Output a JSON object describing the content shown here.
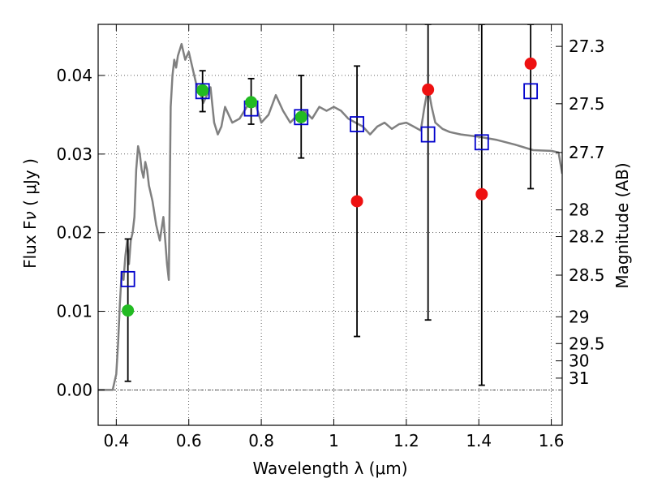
{
  "chart_data": {
    "type": "scatter",
    "xlabel": "Wavelength  λ (μm)",
    "ylabel_left": "Flux  F",
    "ylabel_left_sub": "ν",
    "ylabel_left_unit": " ( μJy )",
    "ylabel_right": "Magnitude (AB)",
    "xlim": [
      0.35,
      1.63
    ],
    "ylim": [
      -0.0045,
      0.0465
    ],
    "x_ticks": [
      {
        "value": 0.4,
        "label": "0.4"
      },
      {
        "value": 0.6,
        "label": "0.6"
      },
      {
        "value": 0.8,
        "label": "0.8"
      },
      {
        "value": 1.0,
        "label": "1"
      },
      {
        "value": 1.2,
        "label": "1.2"
      },
      {
        "value": 1.4,
        "label": "1.4"
      },
      {
        "value": 1.6,
        "label": "1.6"
      }
    ],
    "y_ticks": [
      {
        "value": 0.0,
        "label": "0.00"
      },
      {
        "value": 0.01,
        "label": "0.01"
      },
      {
        "value": 0.02,
        "label": "0.02"
      },
      {
        "value": 0.03,
        "label": "0.03"
      },
      {
        "value": 0.04,
        "label": "0.04"
      }
    ],
    "right_ticks": [
      {
        "flux": 0.0437,
        "label": "27.3"
      },
      {
        "flux": 0.0364,
        "label": "27.5"
      },
      {
        "flux": 0.0302,
        "label": "27.7"
      },
      {
        "flux": 0.0229,
        "label": "28"
      },
      {
        "flux": 0.0195,
        "label": "28.2"
      },
      {
        "flux": 0.0146,
        "label": "28.5"
      },
      {
        "flux": 0.0093,
        "label": "29"
      },
      {
        "flux": 0.0059,
        "label": "29.5"
      },
      {
        "flux": 0.0037,
        "label": "30"
      },
      {
        "flux": 0.0015,
        "label": "31"
      }
    ],
    "grid": true,
    "colors": {
      "model": "#808080",
      "model_points": "#0000cc",
      "detections": "#22bb22",
      "nondetections": "#ee1111",
      "errorbars": "#000000"
    },
    "model_spectrum": {
      "x": [
        0.35,
        0.39,
        0.4,
        0.405,
        0.41,
        0.415,
        0.42,
        0.425,
        0.43,
        0.435,
        0.44,
        0.445,
        0.45,
        0.455,
        0.46,
        0.465,
        0.47,
        0.475,
        0.48,
        0.485,
        0.49,
        0.5,
        0.51,
        0.52,
        0.53,
        0.535,
        0.54,
        0.545,
        0.55,
        0.555,
        0.56,
        0.565,
        0.57,
        0.58,
        0.59,
        0.6,
        0.61,
        0.62,
        0.63,
        0.64,
        0.65,
        0.66,
        0.67,
        0.68,
        0.69,
        0.7,
        0.72,
        0.74,
        0.76,
        0.78,
        0.8,
        0.82,
        0.84,
        0.86,
        0.88,
        0.9,
        0.92,
        0.94,
        0.96,
        0.98,
        1.0,
        1.02,
        1.04,
        1.06,
        1.08,
        1.1,
        1.12,
        1.14,
        1.16,
        1.18,
        1.2,
        1.22,
        1.24,
        1.25,
        1.26,
        1.27,
        1.28,
        1.3,
        1.32,
        1.35,
        1.4,
        1.45,
        1.5,
        1.55,
        1.6,
        1.62,
        1.63
      ],
      "y": [
        0.0,
        0.0,
        0.002,
        0.006,
        0.011,
        0.015,
        0.014,
        0.017,
        0.019,
        0.016,
        0.019,
        0.02,
        0.022,
        0.028,
        0.031,
        0.03,
        0.028,
        0.027,
        0.029,
        0.028,
        0.026,
        0.024,
        0.021,
        0.019,
        0.022,
        0.019,
        0.016,
        0.014,
        0.036,
        0.04,
        0.042,
        0.041,
        0.0425,
        0.044,
        0.042,
        0.043,
        0.041,
        0.039,
        0.038,
        0.0365,
        0.0375,
        0.0385,
        0.034,
        0.0325,
        0.0335,
        0.036,
        0.034,
        0.0345,
        0.036,
        0.037,
        0.034,
        0.035,
        0.0375,
        0.0355,
        0.034,
        0.035,
        0.0355,
        0.0345,
        0.036,
        0.0355,
        0.036,
        0.0355,
        0.0345,
        0.034,
        0.0335,
        0.0325,
        0.0335,
        0.034,
        0.0332,
        0.0338,
        0.034,
        0.0335,
        0.033,
        0.036,
        0.0385,
        0.036,
        0.034,
        0.0332,
        0.0328,
        0.0325,
        0.0322,
        0.0318,
        0.0312,
        0.0305,
        0.0304,
        0.0302,
        0.0275
      ]
    },
    "model_points": [
      {
        "x": 0.432,
        "y": 0.0141
      },
      {
        "x": 0.638,
        "y": 0.038
      },
      {
        "x": 0.772,
        "y": 0.0358
      },
      {
        "x": 0.91,
        "y": 0.0347
      },
      {
        "x": 1.064,
        "y": 0.0338
      },
      {
        "x": 1.26,
        "y": 0.0325
      },
      {
        "x": 1.408,
        "y": 0.0315
      },
      {
        "x": 1.543,
        "y": 0.038
      }
    ],
    "detections": [
      {
        "x": 0.432,
        "y": 0.0101,
        "err_low": 0.0011,
        "err_high": 0.0192
      },
      {
        "x": 0.638,
        "y": 0.0381,
        "err_low": 0.0354,
        "err_high": 0.0406
      },
      {
        "x": 0.772,
        "y": 0.0366,
        "err_low": 0.0338,
        "err_high": 0.0396
      },
      {
        "x": 0.91,
        "y": 0.0347,
        "err_low": 0.0295,
        "err_high": 0.04
      }
    ],
    "nondetections": [
      {
        "x": 1.064,
        "y": 0.024,
        "err_low": 0.0068,
        "err_high": 0.0412
      },
      {
        "x": 1.26,
        "y": 0.0382,
        "err_low": 0.0089,
        "err_high": 0.0465
      },
      {
        "x": 1.408,
        "y": 0.0249,
        "err_low": 0.0006,
        "err_high": 0.0465
      },
      {
        "x": 1.543,
        "y": 0.0415,
        "err_low": 0.0256,
        "err_high": 0.0465
      }
    ]
  }
}
